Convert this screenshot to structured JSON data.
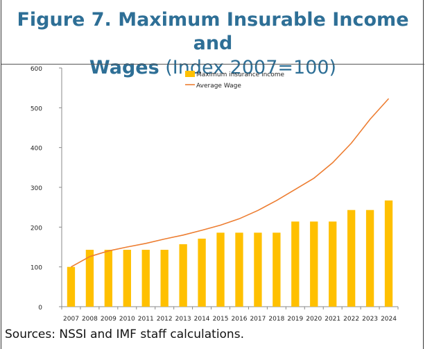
{
  "title": {
    "line1": "Figure 7. Maximum Insurable Income and",
    "line2_bold": "Wages",
    "line2_normal": " (Index 2007=100)"
  },
  "source_note": "Sources: NSSI and IMF staff calculations.",
  "colors": {
    "title": "#2e6f96",
    "bar": "#ffc000",
    "line": "#ed7d31"
  },
  "chart_data": {
    "type": "bar",
    "categories": [
      "2007",
      "2008",
      "2009",
      "2010",
      "2011",
      "2012",
      "2013",
      "2014",
      "2015",
      "2016",
      "2017",
      "2018",
      "2019",
      "2020",
      "2021",
      "2022",
      "2023",
      "2024"
    ],
    "series": [
      {
        "name": "Maximum insurance income",
        "type": "bar",
        "values": [
          100,
          143,
          143,
          143,
          143,
          143,
          157,
          171,
          186,
          186,
          186,
          186,
          214,
          214,
          214,
          243,
          243,
          267
        ]
      },
      {
        "name": "Average Wage",
        "type": "line",
        "values": [
          100,
          126,
          140,
          150,
          159,
          170,
          180,
          192,
          205,
          221,
          242,
          267,
          295,
          323,
          362,
          411,
          471,
          523
        ]
      }
    ],
    "ylim": [
      0,
      600
    ],
    "yticks": [
      0,
      100,
      200,
      300,
      400,
      500,
      600
    ],
    "legend_position": "top-center",
    "grid": false
  }
}
